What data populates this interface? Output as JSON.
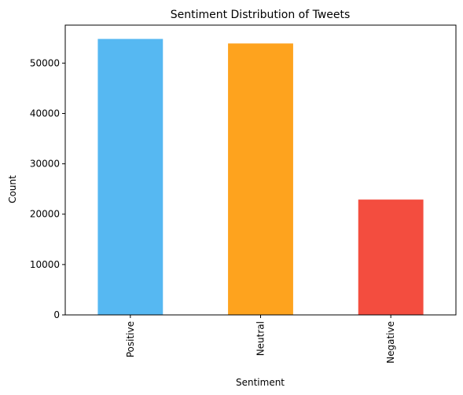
{
  "chart_data": {
    "type": "bar",
    "title": "Sentiment Distribution of Tweets",
    "xlabel": "Sentiment",
    "ylabel": "Count",
    "categories": [
      "Positive",
      "Neutral",
      "Negative"
    ],
    "values": [
      54800,
      53900,
      22900
    ],
    "colors": [
      "#56b8f2",
      "#fea31e",
      "#f34d3f"
    ],
    "ylim": [
      0,
      57540
    ],
    "yticks": [
      0,
      10000,
      20000,
      30000,
      40000,
      50000
    ],
    "grid": false,
    "legend": "none"
  }
}
